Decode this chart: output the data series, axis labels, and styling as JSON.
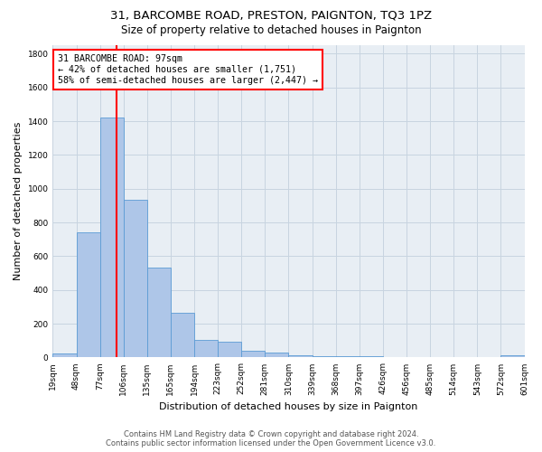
{
  "title1": "31, BARCOMBE ROAD, PRESTON, PAIGNTON, TQ3 1PZ",
  "title2": "Size of property relative to detached houses in Paignton",
  "xlabel": "Distribution of detached houses by size in Paignton",
  "ylabel": "Number of detached properties",
  "footer1": "Contains HM Land Registry data © Crown copyright and database right 2024.",
  "footer2": "Contains public sector information licensed under the Open Government Licence v3.0.",
  "annotation_line1": "31 BARCOMBE ROAD: 97sqm",
  "annotation_line2": "← 42% of detached houses are smaller (1,751)",
  "annotation_line3": "58% of semi-detached houses are larger (2,447) →",
  "bar_values": [
    22,
    740,
    1420,
    935,
    530,
    265,
    105,
    95,
    40,
    28,
    15,
    5,
    5,
    5,
    3,
    3,
    3,
    3,
    3,
    15
  ],
  "bin_labels": [
    "19sqm",
    "48sqm",
    "77sqm",
    "106sqm",
    "135sqm",
    "165sqm",
    "194sqm",
    "223sqm",
    "252sqm",
    "281sqm",
    "310sqm",
    "339sqm",
    "368sqm",
    "397sqm",
    "426sqm",
    "456sqm",
    "485sqm",
    "514sqm",
    "543sqm",
    "572sqm",
    "601sqm"
  ],
  "bar_color": "#aec6e8",
  "bar_edge_color": "#5b9bd5",
  "vline_color": "red",
  "ylim": [
    0,
    1850
  ],
  "yticks": [
    0,
    200,
    400,
    600,
    800,
    1000,
    1200,
    1400,
    1600,
    1800
  ],
  "grid_color": "#c8d4e0",
  "bg_color": "#e8eef4",
  "title1_fontsize": 9.5,
  "title2_fontsize": 8.5,
  "xlabel_fontsize": 8,
  "ylabel_fontsize": 8,
  "tick_fontsize": 6.5
}
